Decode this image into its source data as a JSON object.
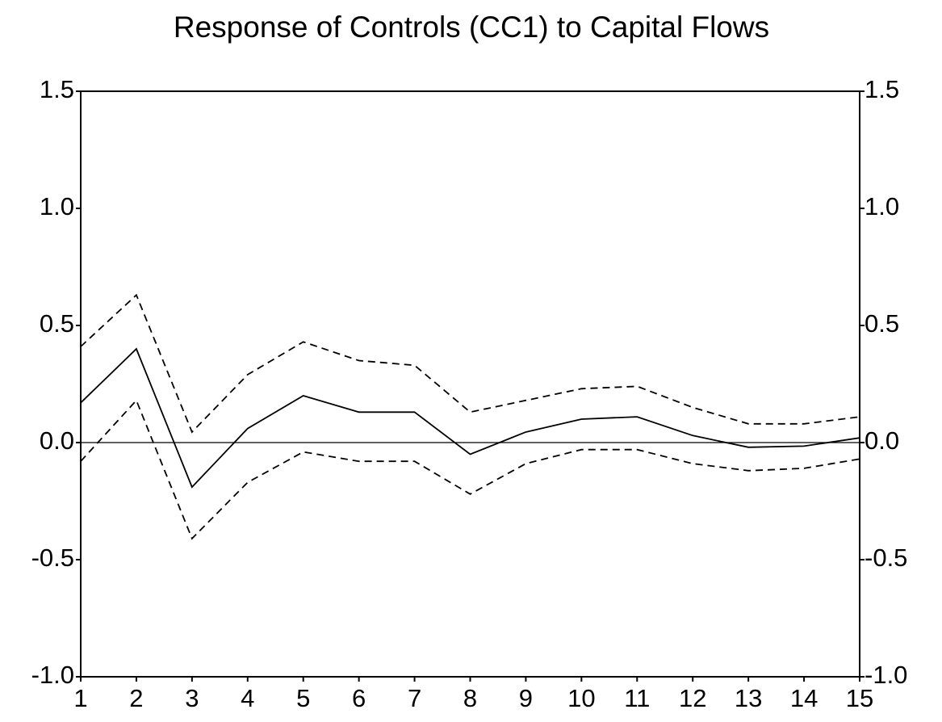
{
  "chart_data": {
    "type": "line",
    "title": "Response of Controls (CC1) to Capital Flows",
    "x": [
      1,
      2,
      3,
      4,
      5,
      6,
      7,
      8,
      9,
      10,
      11,
      12,
      13,
      14,
      15
    ],
    "xlim": [
      1,
      15
    ],
    "xticks": [
      1,
      2,
      3,
      4,
      5,
      6,
      7,
      8,
      9,
      10,
      11,
      12,
      13,
      14,
      15
    ],
    "ylim": [
      -1.0,
      1.5
    ],
    "yticks": [
      {
        "value": 1.5,
        "label": "1.5"
      },
      {
        "value": 1.0,
        "label": "1.0"
      },
      {
        "value": 0.5,
        "label": "0.5"
      },
      {
        "value": 0.0,
        "label": "0.0"
      },
      {
        "value": -0.5,
        "label": "-0.5"
      },
      {
        "value": -1.0,
        "label": "-1.0"
      }
    ],
    "y2lim": [
      -1.0,
      1.5
    ],
    "y2ticks": [
      {
        "value": 1.5,
        "label": "1.5"
      },
      {
        "value": 1.0,
        "label": "1.0"
      },
      {
        "value": 0.5,
        "label": "0.5"
      },
      {
        "value": 0.0,
        "label": "0.0"
      },
      {
        "value": -0.5,
        "label": "-0.5"
      },
      {
        "value": -1.0,
        "label": "-1.0"
      }
    ],
    "zero_line": true,
    "grid": false,
    "series": [
      {
        "color": "#000000",
        "dashed": false,
        "values": [
          0.17,
          0.4,
          -0.19,
          0.06,
          0.2,
          0.13,
          0.13,
          -0.05,
          0.045,
          0.1,
          0.11,
          0.03,
          -0.02,
          -0.015,
          0.02
        ]
      },
      {
        "color": "#000000",
        "dashed": true,
        "values": [
          0.41,
          0.63,
          0.045,
          0.29,
          0.43,
          0.35,
          0.33,
          0.13,
          0.18,
          0.23,
          0.24,
          0.15,
          0.08,
          0.08,
          0.11
        ]
      },
      {
        "color": "#000000",
        "dashed": true,
        "values": [
          -0.08,
          0.18,
          -0.41,
          -0.17,
          -0.04,
          -0.08,
          -0.08,
          -0.22,
          -0.09,
          -0.03,
          -0.03,
          -0.09,
          -0.12,
          -0.11,
          -0.07
        ]
      }
    ]
  }
}
